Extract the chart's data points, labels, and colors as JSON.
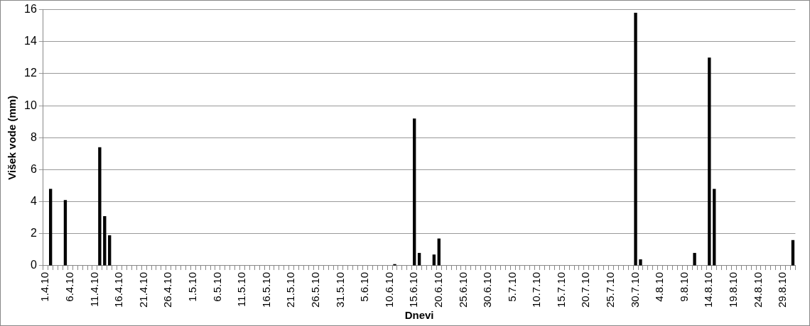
{
  "chart_data": {
    "type": "bar",
    "xlabel": "Dnevi",
    "ylabel": "Višek vode (mm)",
    "categories": [
      "1.4.10",
      null,
      null,
      null,
      null,
      "6.4.10",
      null,
      null,
      null,
      null,
      "11.4.10",
      null,
      null,
      null,
      null,
      "16.4.10",
      null,
      null,
      null,
      null,
      "21.4.10",
      null,
      null,
      null,
      null,
      "26.4.10",
      null,
      null,
      null,
      null,
      "1.5.10",
      null,
      null,
      null,
      null,
      "6.5.10",
      null,
      null,
      null,
      null,
      "11.5.10",
      null,
      null,
      null,
      null,
      "16.5.10",
      null,
      null,
      null,
      null,
      "21.5.10",
      null,
      null,
      null,
      null,
      "26.5.10",
      null,
      null,
      null,
      null,
      "31.5.10",
      null,
      null,
      null,
      null,
      "5.6.10",
      null,
      null,
      null,
      null,
      "10.6.10",
      null,
      null,
      null,
      null,
      "15.6.10",
      null,
      null,
      null,
      null,
      "20.6.10",
      null,
      null,
      null,
      null,
      "25.6.10",
      null,
      null,
      null,
      null,
      "30.6.10",
      null,
      null,
      null,
      null,
      "5.7.10",
      null,
      null,
      null,
      null,
      "10.7.10",
      null,
      null,
      null,
      null,
      "15.7.10",
      null,
      null,
      null,
      null,
      "20.7.10",
      null,
      null,
      null,
      null,
      "25.7.10",
      null,
      null,
      null,
      null,
      "30.7.10",
      null,
      null,
      null,
      null,
      "4.8.10",
      null,
      null,
      null,
      null,
      "9.8.10",
      null,
      null,
      null,
      null,
      "14.8.10",
      null,
      null,
      null,
      null,
      "19.8.10",
      null,
      null,
      null,
      null,
      "24.8.10",
      null,
      null,
      null,
      null,
      "29.8.10",
      null,
      null
    ],
    "values": [
      0,
      4.8,
      0,
      0,
      4.1,
      0,
      0,
      0,
      0,
      0,
      0,
      7.4,
      3.1,
      1.9,
      0,
      0,
      0,
      0,
      0,
      0,
      0,
      0,
      0,
      0,
      0,
      0,
      0,
      0,
      0,
      0,
      0,
      0,
      0,
      0,
      0,
      0,
      0,
      0,
      0,
      0,
      0,
      0,
      0,
      0,
      0,
      0,
      0,
      0,
      0,
      0,
      0,
      0,
      0,
      0,
      0,
      0,
      0,
      0,
      0,
      0,
      0,
      0,
      0,
      0,
      0,
      0,
      0,
      0,
      0,
      0,
      0,
      0.1,
      0,
      0,
      0,
      9.2,
      0.8,
      0,
      0,
      0.7,
      1.7,
      0,
      0,
      0,
      0,
      0,
      0,
      0,
      0,
      0,
      0,
      0,
      0,
      0,
      0,
      0,
      0,
      0,
      0,
      0,
      0,
      0,
      0,
      0,
      0,
      0,
      0,
      0,
      0,
      0,
      0,
      0,
      0,
      0,
      0,
      0,
      0,
      0,
      0,
      0,
      15.8,
      0.4,
      0,
      0,
      0,
      0,
      0,
      0,
      0,
      0,
      0,
      0,
      0.8,
      0,
      0,
      13,
      4.8,
      0,
      0,
      0,
      0,
      0,
      0,
      0,
      0,
      0,
      0,
      0,
      0,
      0,
      0,
      0,
      1.6
    ],
    "color": "#000000",
    "ylim": [
      0,
      16
    ],
    "yticks": [
      0,
      2,
      4,
      6,
      8,
      10,
      12,
      14,
      16
    ],
    "grid": "y",
    "legend": false
  }
}
